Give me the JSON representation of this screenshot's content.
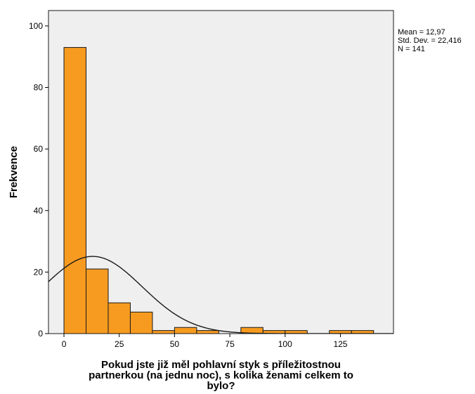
{
  "chart_data": {
    "type": "bar",
    "subtype": "histogram",
    "bin_width": 10,
    "bins": [
      {
        "start": 0,
        "end": 10,
        "count": 93
      },
      {
        "start": 10,
        "end": 20,
        "count": 21
      },
      {
        "start": 20,
        "end": 30,
        "count": 10
      },
      {
        "start": 30,
        "end": 40,
        "count": 7
      },
      {
        "start": 40,
        "end": 50,
        "count": 1
      },
      {
        "start": 50,
        "end": 60,
        "count": 2
      },
      {
        "start": 60,
        "end": 70,
        "count": 1
      },
      {
        "start": 80,
        "end": 90,
        "count": 2
      },
      {
        "start": 90,
        "end": 100,
        "count": 1
      },
      {
        "start": 100,
        "end": 110,
        "count": 1
      },
      {
        "start": 120,
        "end": 130,
        "count": 1
      },
      {
        "start": 130,
        "end": 140,
        "count": 1
      }
    ],
    "xlabel_lines": [
      "Pokud jste již měl pohlavní styk s příležitostnou",
      "partnerkou (na jednu noc), s kolika ženami celkem to",
      "bylo?"
    ],
    "ylabel": "Frekvence",
    "xlim": [
      -7,
      149
    ],
    "ylim": [
      0,
      105
    ],
    "xticks": [
      0,
      25,
      50,
      75,
      100,
      125
    ],
    "yticks": [
      0,
      20,
      40,
      60,
      80,
      100
    ],
    "normal_curve": {
      "mean": 12.97,
      "sd": 22.416,
      "n": 141
    },
    "stats": {
      "mean_label": "Mean = 12,97",
      "sd_label": "Std. Dev. = 22,416",
      "n_label": "N = 141"
    },
    "grid": false,
    "colors": {
      "bar_fill": "#F79B20",
      "bar_stroke": "#1a1a1a",
      "plot_background": "#EFEFEF",
      "curve": "#1a1a1a",
      "frame": "#1a1a1a"
    }
  }
}
